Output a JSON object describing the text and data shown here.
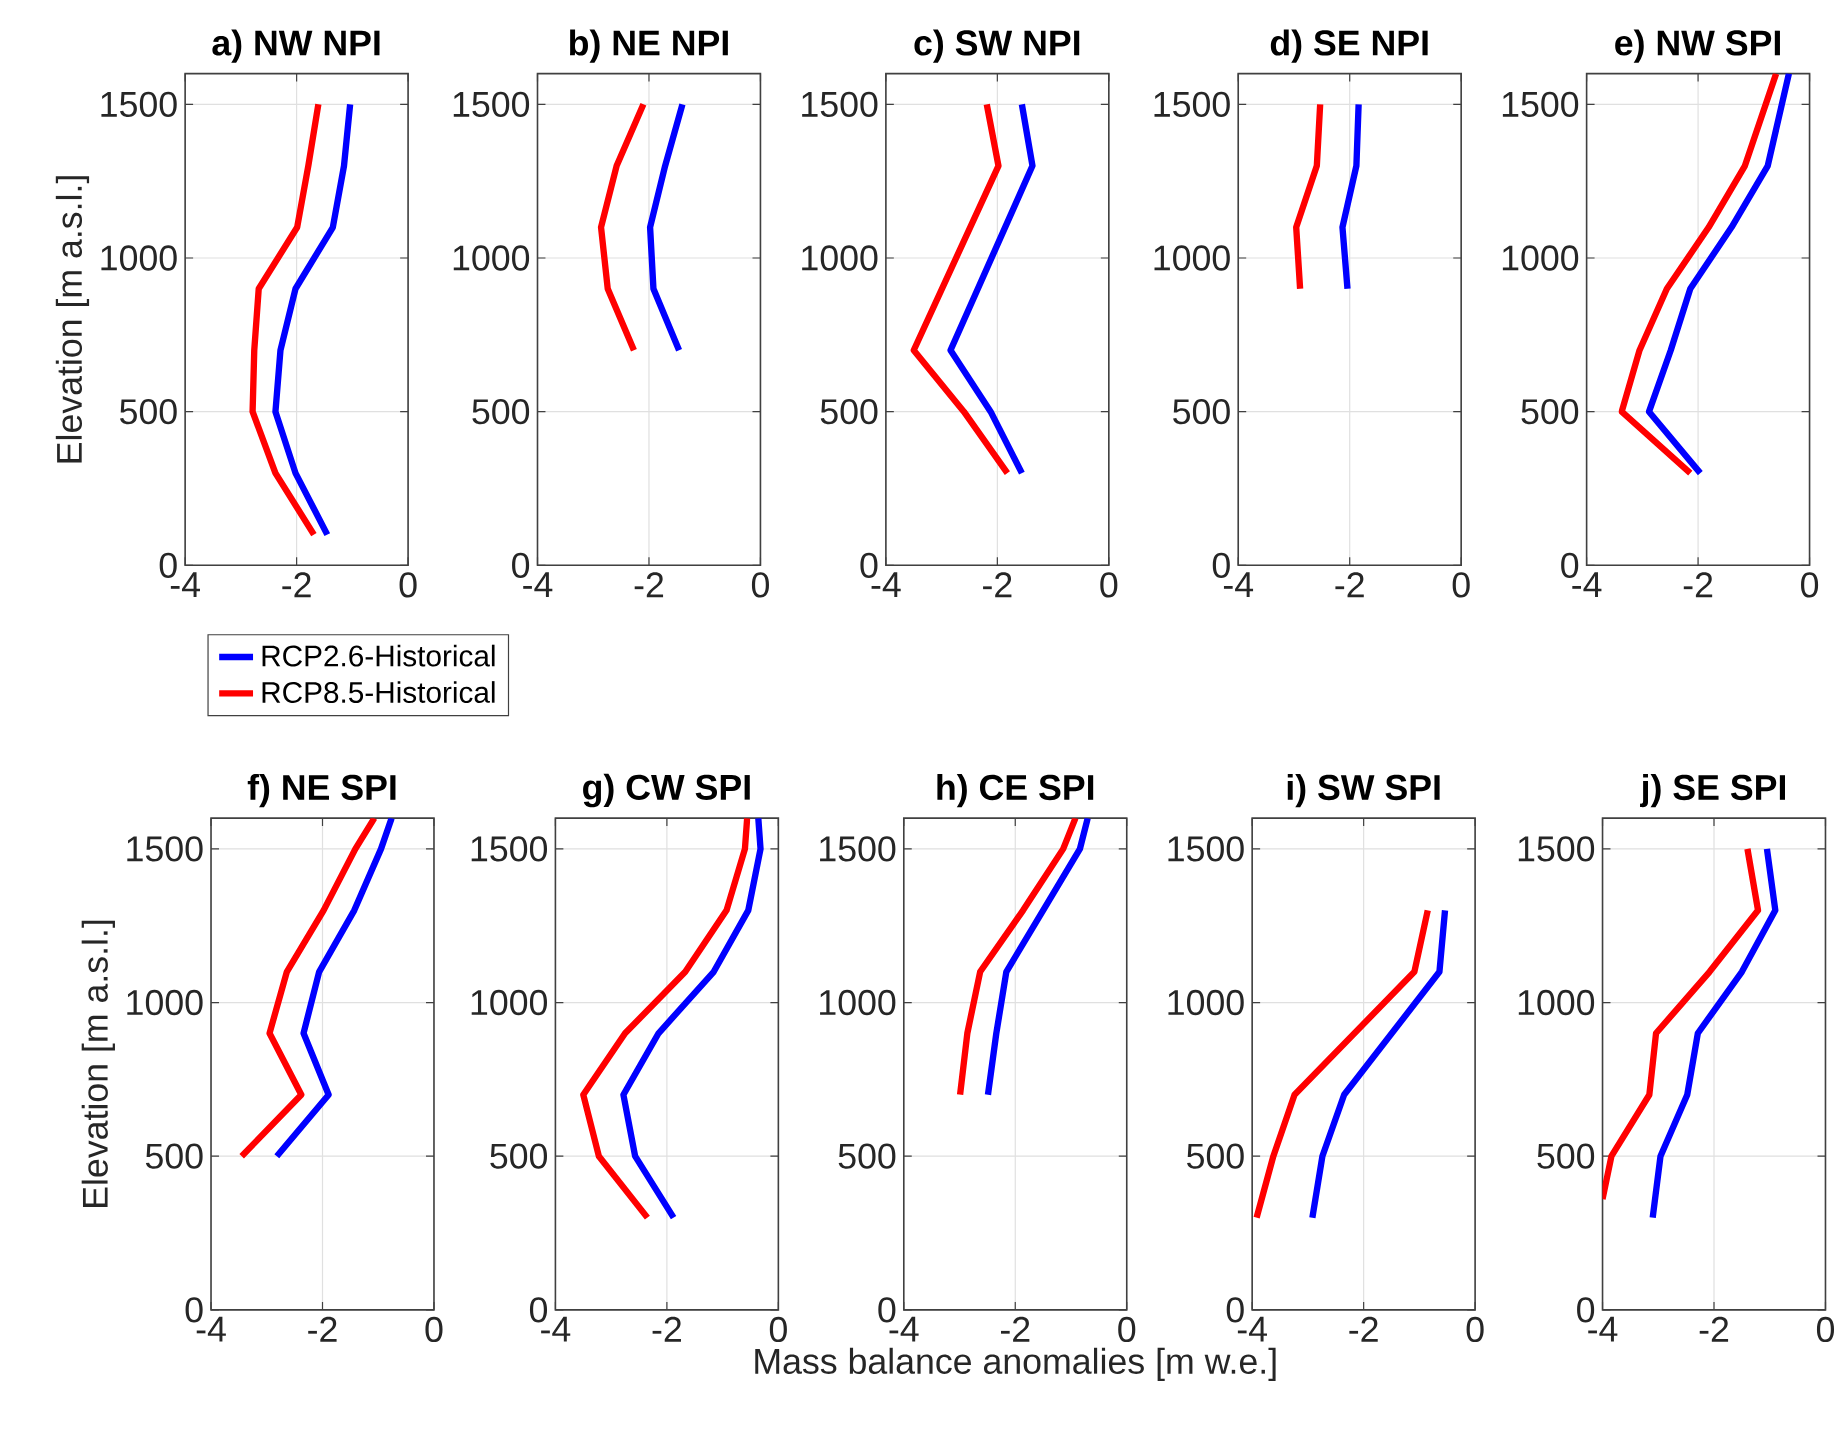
{
  "chart_data": [
    {
      "type": "line",
      "title": "a) NW NPI",
      "ylabel": "Elevation [m a.s.l.]",
      "xlim": [
        -4,
        0
      ],
      "ylim": [
        0,
        1600
      ],
      "xticks": [
        -4,
        -2,
        0
      ],
      "yticks": [
        0,
        500,
        1000,
        1500
      ],
      "grid": true,
      "legend": "bottom",
      "series": [
        {
          "name": "RCP2.6-Historical",
          "color": "#0000ff",
          "x": [
            -1.04,
            -1.15,
            -1.35,
            -2.02,
            -2.29,
            -2.38,
            -2.02,
            -1.45
          ],
          "values": [
            1500,
            1300,
            1100,
            900,
            700,
            500,
            300,
            100
          ]
        },
        {
          "name": "RCP8.5-Historical",
          "color": "#ff0000",
          "x": [
            -1.61,
            -1.79,
            -1.99,
            -2.68,
            -2.76,
            -2.79,
            -2.38,
            -1.69
          ],
          "values": [
            1500,
            1300,
            1100,
            900,
            700,
            500,
            300,
            100
          ]
        }
      ]
    },
    {
      "type": "line",
      "title": "b) NE NPI",
      "xlim": [
        -4,
        0
      ],
      "ylim": [
        0,
        1600
      ],
      "xticks": [
        -4,
        -2,
        0
      ],
      "yticks": [
        0,
        500,
        1000,
        1500
      ],
      "grid": true,
      "series": [
        {
          "color": "#0000ff",
          "x": [
            -1.4,
            -1.71,
            -1.98,
            -1.92,
            -1.46
          ],
          "values": [
            1500,
            1300,
            1100,
            900,
            700
          ]
        },
        {
          "color": "#ff0000",
          "x": [
            -2.1,
            -2.58,
            -2.86,
            -2.74,
            -2.27
          ],
          "values": [
            1500,
            1300,
            1100,
            900,
            700
          ]
        }
      ]
    },
    {
      "type": "line",
      "title": "c) SW NPI",
      "xlim": [
        -4,
        0
      ],
      "ylim": [
        0,
        1600
      ],
      "xticks": [
        -4,
        -2,
        0
      ],
      "yticks": [
        0,
        500,
        1000,
        1500
      ],
      "grid": true,
      "series": [
        {
          "color": "#0000ff",
          "x": [
            -1.56,
            -1.37,
            -2.84,
            -2.12,
            -1.56
          ],
          "values": [
            1500,
            1300,
            700,
            500,
            300
          ]
        },
        {
          "color": "#ff0000",
          "x": [
            -2.19,
            -1.98,
            -3.5,
            -2.6,
            -1.82
          ],
          "values": [
            1500,
            1300,
            700,
            500,
            300
          ]
        }
      ]
    },
    {
      "type": "line",
      "title": "d) SE NPI",
      "xlim": [
        -4,
        0
      ],
      "ylim": [
        0,
        1600
      ],
      "xticks": [
        -4,
        -2,
        0
      ],
      "yticks": [
        0,
        500,
        1000,
        1500
      ],
      "grid": true,
      "series": [
        {
          "color": "#0000ff",
          "x": [
            -1.84,
            -1.88,
            -2.13,
            -2.04
          ],
          "values": [
            1500,
            1300,
            1100,
            900
          ]
        },
        {
          "color": "#ff0000",
          "x": [
            -2.53,
            -2.59,
            -2.96,
            -2.89
          ],
          "values": [
            1500,
            1300,
            1100,
            900
          ]
        }
      ]
    },
    {
      "type": "line",
      "title": "e) NW SPI",
      "xlim": [
        -4,
        0
      ],
      "ylim": [
        0,
        1600
      ],
      "xticks": [
        -4,
        -2,
        0
      ],
      "yticks": [
        0,
        500,
        1000,
        1500
      ],
      "grid": true,
      "series": [
        {
          "color": "#0000ff",
          "x": [
            -0.37,
            -0.75,
            -1.4,
            -2.14,
            -2.49,
            -2.88,
            -1.96
          ],
          "values": [
            1600,
            1300,
            1100,
            900,
            700,
            500,
            300
          ]
        },
        {
          "color": "#ff0000",
          "x": [
            -0.6,
            -1.16,
            -1.81,
            -2.56,
            -3.05,
            -3.37,
            -2.14
          ],
          "values": [
            1600,
            1300,
            1100,
            900,
            700,
            500,
            300
          ]
        }
      ]
    },
    {
      "type": "line",
      "title": "f) NE SPI",
      "ylabel": "Elevation [m a.s.l.]",
      "xlim": [
        -4,
        0
      ],
      "ylim": [
        0,
        1600
      ],
      "xticks": [
        -4,
        -2,
        0
      ],
      "yticks": [
        0,
        500,
        1000,
        1500
      ],
      "grid": true,
      "series": [
        {
          "color": "#0000ff",
          "x": [
            -0.76,
            -0.95,
            -1.43,
            -2.06,
            -2.34,
            -1.89,
            -2.82
          ],
          "values": [
            1600,
            1500,
            1300,
            1100,
            900,
            700,
            500
          ]
        },
        {
          "color": "#ff0000",
          "x": [
            -1.07,
            -1.41,
            -1.98,
            -2.64,
            -2.95,
            -2.38,
            -3.45
          ],
          "values": [
            1600,
            1500,
            1300,
            1100,
            900,
            700,
            500
          ]
        }
      ]
    },
    {
      "type": "line",
      "title": "g) CW SPI",
      "xlim": [
        -4,
        0
      ],
      "ylim": [
        0,
        1600
      ],
      "xticks": [
        -4,
        -2,
        0
      ],
      "yticks": [
        0,
        500,
        1000,
        1500
      ],
      "grid": true,
      "series": [
        {
          "color": "#0000ff",
          "x": [
            -0.36,
            -0.32,
            -0.54,
            -1.16,
            -2.15,
            -2.78,
            -2.57,
            -1.88
          ],
          "values": [
            1600,
            1500,
            1300,
            1100,
            900,
            700,
            500,
            300
          ]
        },
        {
          "color": "#ff0000",
          "x": [
            -0.56,
            -0.6,
            -0.93,
            -1.67,
            -2.75,
            -3.5,
            -3.22,
            -2.35
          ],
          "values": [
            1600,
            1500,
            1300,
            1100,
            900,
            700,
            500,
            300
          ]
        }
      ]
    },
    {
      "type": "line",
      "title": "h) CE SPI",
      "xlabel": "Mass balance anomalies [m w.e.]",
      "xlim": [
        -4,
        0
      ],
      "ylim": [
        0,
        1600
      ],
      "xticks": [
        -4,
        -2,
        0
      ],
      "yticks": [
        0,
        500,
        1000,
        1500
      ],
      "grid": true,
      "series": [
        {
          "color": "#0000ff",
          "x": [
            -0.7,
            -0.84,
            -1.5,
            -2.16,
            -2.34,
            -2.49
          ],
          "values": [
            1600,
            1500,
            1300,
            1100,
            900,
            700
          ]
        },
        {
          "color": "#ff0000",
          "x": [
            -0.92,
            -1.14,
            -1.86,
            -2.63,
            -2.86,
            -2.99
          ],
          "values": [
            1600,
            1500,
            1300,
            1100,
            900,
            700
          ]
        }
      ]
    },
    {
      "type": "line",
      "title": "i) SW SPI",
      "xlim": [
        -4,
        0
      ],
      "ylim": [
        0,
        1600
      ],
      "xticks": [
        -4,
        -2,
        0
      ],
      "yticks": [
        0,
        500,
        1000,
        1500
      ],
      "grid": true,
      "series": [
        {
          "color": "#0000ff",
          "x": [
            -0.54,
            -0.64,
            -2.35,
            -2.74,
            -2.92
          ],
          "values": [
            1300,
            1100,
            700,
            500,
            300
          ]
        },
        {
          "color": "#ff0000",
          "x": [
            -0.85,
            -1.09,
            -3.24,
            -3.62,
            -3.92
          ],
          "values": [
            1300,
            1100,
            700,
            500,
            300
          ]
        }
      ]
    },
    {
      "type": "line",
      "title": "j) SE SPI",
      "xlim": [
        -4,
        0
      ],
      "ylim": [
        0,
        1600
      ],
      "xticks": [
        -4,
        -2,
        0
      ],
      "yticks": [
        0,
        500,
        1000,
        1500
      ],
      "grid": true,
      "series": [
        {
          "color": "#0000ff",
          "x": [
            -1.05,
            -0.9,
            -1.5,
            -2.29,
            -2.48,
            -2.96,
            -3.1
          ],
          "values": [
            1500,
            1300,
            1100,
            900,
            700,
            500,
            300
          ]
        },
        {
          "color": "#ff0000",
          "x": [
            -1.4,
            -1.21,
            -2.08,
            -3.04,
            -3.16,
            -3.84,
            -4.0
          ],
          "values": [
            1500,
            1300,
            1100,
            900,
            700,
            500,
            360
          ]
        }
      ]
    }
  ]
}
